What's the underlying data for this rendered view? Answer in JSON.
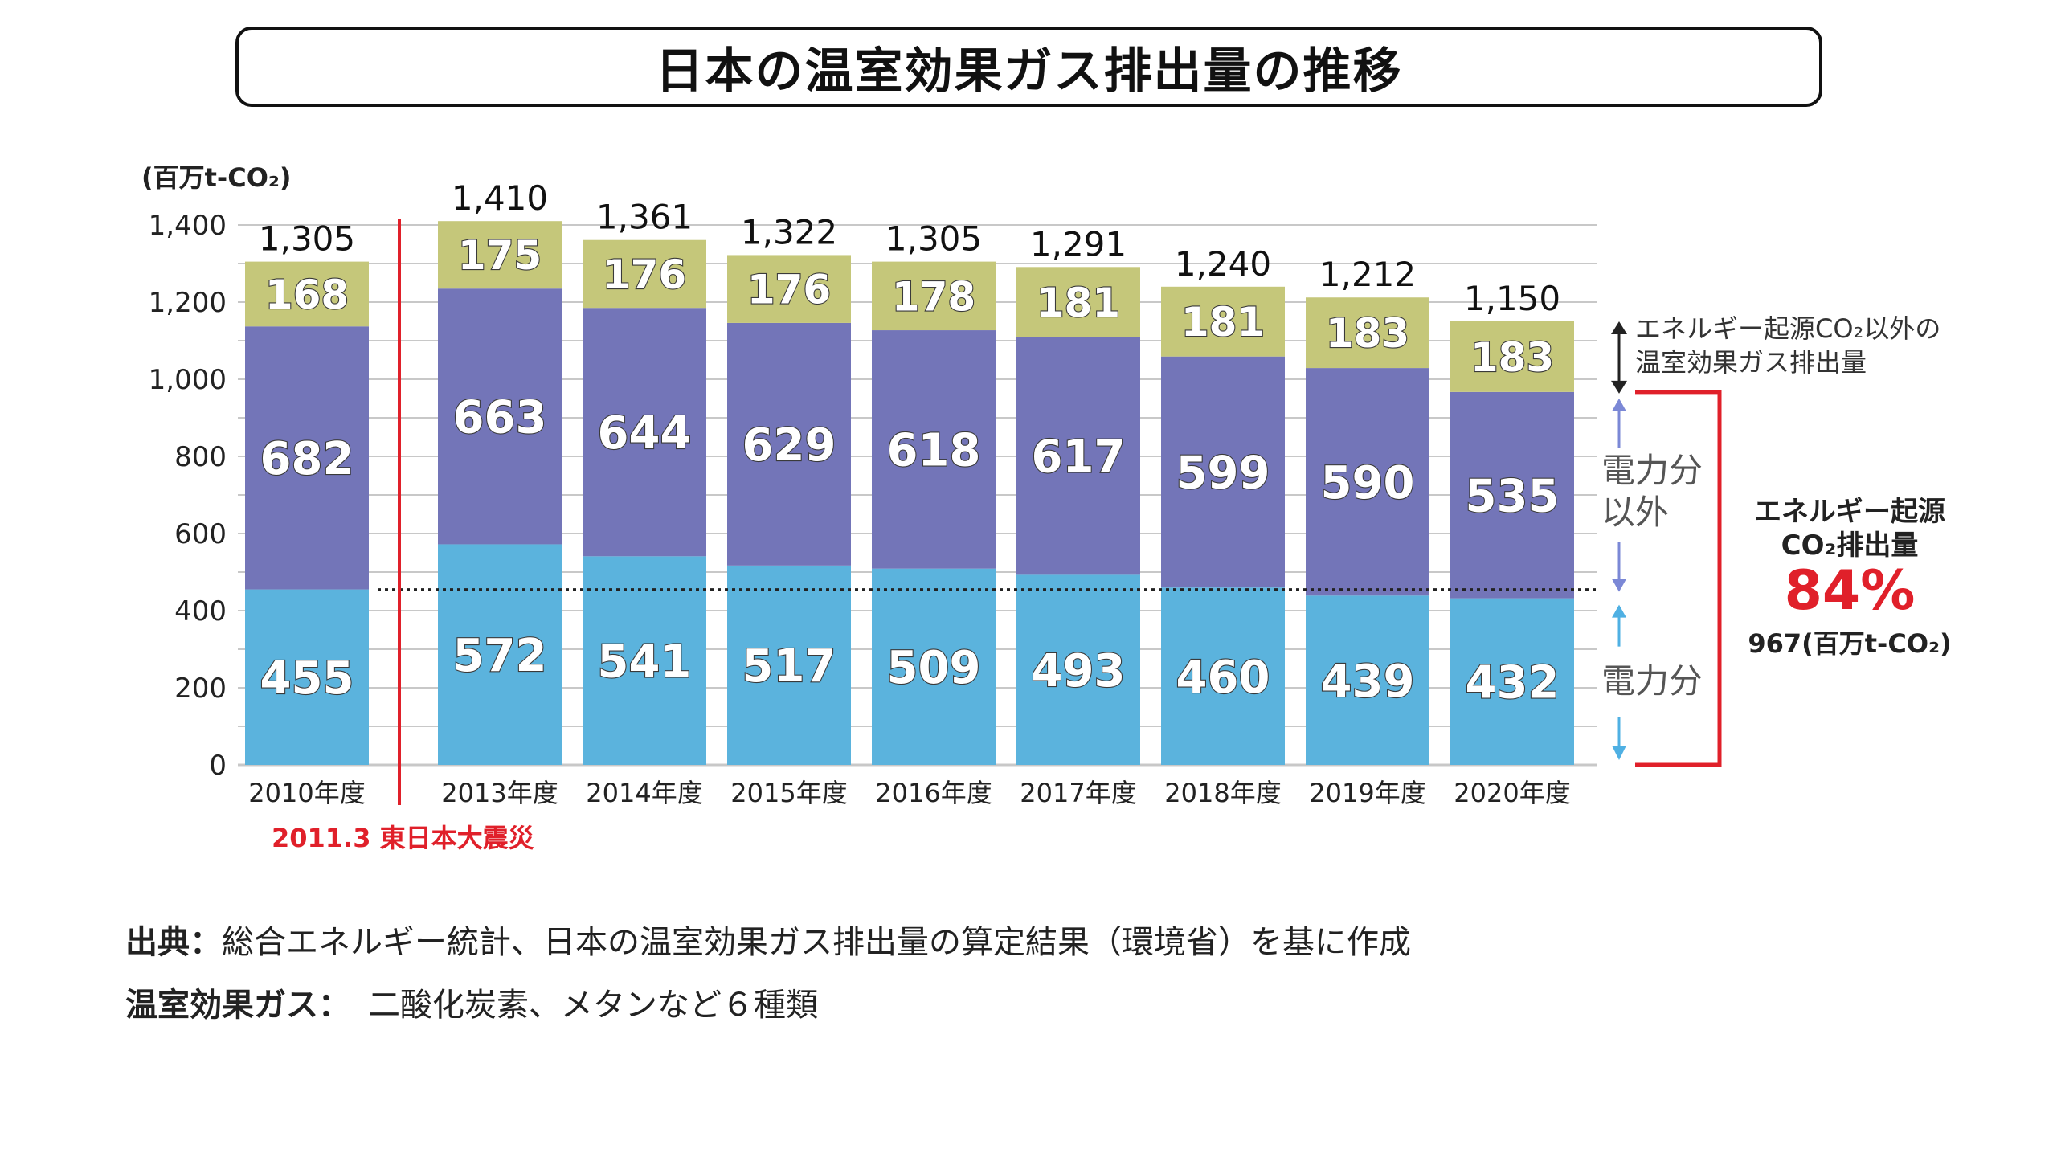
{
  "title": "日本の温室効果ガス排出量の推移",
  "unit_label": "(百万t-CO₂)",
  "event_label": "2011.3 東日本大震災",
  "annotations": {
    "non_energy": [
      "エネルギー起源CO₂以外の",
      "温室効果ガス排出量"
    ],
    "non_power": [
      "電力分",
      "以外"
    ],
    "power": "電力分",
    "energy_title": [
      "エネルギー起源",
      "CO₂排出量"
    ],
    "energy_share": "84%",
    "energy_value": "967(百万t-CO₂)"
  },
  "footnotes": {
    "source_label": "出典：",
    "source_text": "総合エネルギー統計、日本の温室効果ガス排出量の算定結果（環境省）を基に作成",
    "gas_label": "温室効果ガス：",
    "gas_text": "二酸化炭素、メタンなど６種類"
  },
  "colors": {
    "power": "#5bb3dd",
    "non_power": "#7375b8",
    "non_energy": "#c5c77a",
    "accent": "#e0202a",
    "grid": "#c8c8c8"
  },
  "chart_data": {
    "type": "bar",
    "stacked": true,
    "categories": [
      "2010年度",
      "2013年度",
      "2014年度",
      "2015年度",
      "2016年度",
      "2017年度",
      "2018年度",
      "2019年度",
      "2020年度"
    ],
    "series": [
      {
        "name": "電力分",
        "values": [
          455,
          572,
          541,
          517,
          509,
          493,
          460,
          439,
          432
        ]
      },
      {
        "name": "電力分以外",
        "values": [
          682,
          663,
          644,
          629,
          618,
          617,
          599,
          590,
          535
        ]
      },
      {
        "name": "エネルギー起源CO₂以外の温室効果ガス排出量",
        "values": [
          168,
          175,
          176,
          176,
          178,
          181,
          181,
          183,
          183
        ]
      }
    ],
    "totals": [
      "1,305",
      "1,410",
      "1,361",
      "1,322",
      "1,305",
      "1,291",
      "1,240",
      "1,212",
      "1,150"
    ],
    "yticks": [
      "0",
      "200",
      "400",
      "600",
      "800",
      "1,000",
      "1,200",
      "1,400"
    ],
    "ylim": [
      0,
      1400
    ],
    "reference_line": 455,
    "grid": true
  }
}
